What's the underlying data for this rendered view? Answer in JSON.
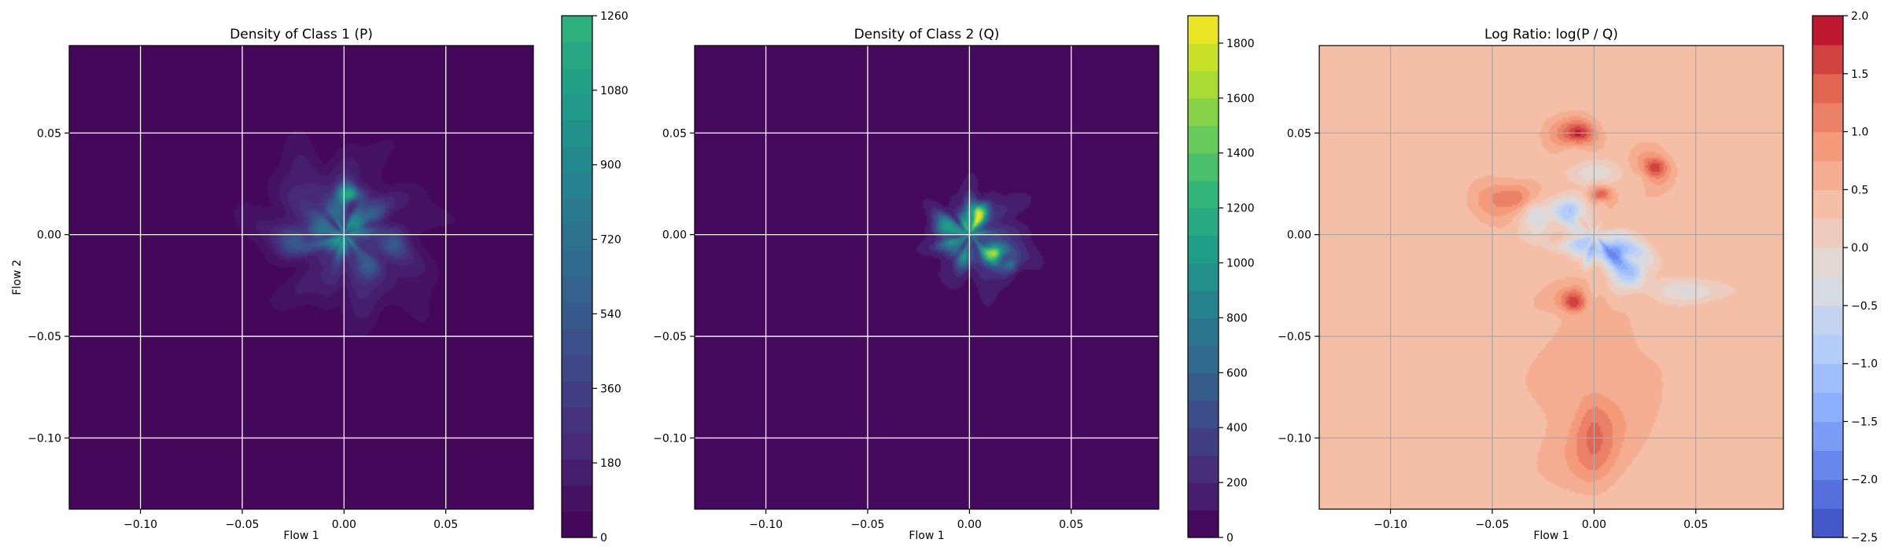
{
  "chart_data": [
    {
      "type": "heatmap",
      "title": "Density of Class 1 (P)",
      "xlabel": "Flow 1",
      "ylabel": "Flow 2",
      "xlim": [
        -0.135,
        0.093
      ],
      "ylim": [
        -0.135,
        0.093
      ],
      "xticks": [
        -0.1,
        -0.05,
        0.0,
        0.05
      ],
      "xtick_labels": [
        "−0.10",
        "−0.05",
        "0.00",
        "0.05"
      ],
      "yticks": [
        -0.1,
        -0.05,
        0.0,
        0.05
      ],
      "ytick_labels": [
        "−0.10",
        "−0.05",
        "0.00",
        "0.05"
      ],
      "grid": true,
      "grid_color": "#ffffff",
      "colormap": "viridis",
      "background_color": "#440154",
      "colorbar": {
        "min": 0,
        "max": 1260,
        "ticks": [
          0,
          180,
          360,
          540,
          720,
          900,
          1080,
          1260
        ],
        "tick_labels": [
          "0",
          "180",
          "360",
          "540",
          "720",
          "900",
          "1080",
          "1260"
        ],
        "levels": 20,
        "cmap_top": 0.65
      },
      "blobs": [
        {
          "x": 0.0,
          "y": 0.0,
          "sx": 0.032,
          "sy": 0.03,
          "value": 110
        },
        {
          "x": -0.012,
          "y": 0.012,
          "sx": 0.018,
          "sy": 0.018,
          "value": 160
        },
        {
          "x": 0.012,
          "y": -0.012,
          "sx": 0.018,
          "sy": 0.018,
          "value": 150
        },
        {
          "x": 0.003,
          "y": 0.02,
          "sx": 0.004,
          "sy": 0.003,
          "value": 980
        },
        {
          "x": 0.006,
          "y": 0.005,
          "sx": 0.004,
          "sy": 0.004,
          "value": 620
        },
        {
          "x": -0.002,
          "y": -0.004,
          "sx": 0.004,
          "sy": 0.004,
          "value": 720
        },
        {
          "x": -0.012,
          "y": 0.002,
          "sx": 0.004,
          "sy": 0.004,
          "value": 420
        },
        {
          "x": -0.025,
          "y": -0.003,
          "sx": 0.005,
          "sy": 0.004,
          "value": 360
        },
        {
          "x": 0.025,
          "y": -0.004,
          "sx": 0.004,
          "sy": 0.004,
          "value": 320
        },
        {
          "x": 0.015,
          "y": 0.01,
          "sx": 0.004,
          "sy": 0.004,
          "value": 300
        },
        {
          "x": -0.005,
          "y": 0.012,
          "sx": 0.004,
          "sy": 0.004,
          "value": 340
        },
        {
          "x": 0.012,
          "y": -0.015,
          "sx": 0.004,
          "sy": 0.004,
          "value": 300
        }
      ]
    },
    {
      "type": "heatmap",
      "title": "Density of Class 2 (Q)",
      "xlabel": "Flow 1",
      "ylabel": "",
      "xlim": [
        -0.135,
        0.093
      ],
      "ylim": [
        -0.135,
        0.093
      ],
      "xticks": [
        -0.1,
        -0.05,
        0.0,
        0.05
      ],
      "xtick_labels": [
        "−0.10",
        "−0.05",
        "0.00",
        "0.05"
      ],
      "yticks": [
        -0.1,
        -0.05,
        0.0,
        0.05
      ],
      "ytick_labels": [
        "−0.10",
        "−0.05",
        "0.00",
        "0.05"
      ],
      "grid": true,
      "grid_color": "#ffffff",
      "colormap": "viridis",
      "background_color": "#440154",
      "colorbar": {
        "min": 0,
        "max": 1900,
        "ticks": [
          0,
          200,
          400,
          600,
          800,
          1000,
          1200,
          1400,
          1600,
          1800
        ],
        "tick_labels": [
          "0",
          "200",
          "400",
          "600",
          "800",
          "1000",
          "1200",
          "1400",
          "1600",
          "1800"
        ],
        "levels": 19,
        "cmap_top": 1.0
      },
      "blobs": [
        {
          "x": 0.002,
          "y": 0.0,
          "sx": 0.022,
          "sy": 0.022,
          "value": 160
        },
        {
          "x": 0.01,
          "y": -0.005,
          "sx": 0.012,
          "sy": 0.012,
          "value": 230
        },
        {
          "x": 0.004,
          "y": 0.011,
          "sx": 0.003,
          "sy": 0.004,
          "value": 1500
        },
        {
          "x": 0.012,
          "y": -0.009,
          "sx": 0.004,
          "sy": 0.003,
          "value": 1350
        },
        {
          "x": -0.012,
          "y": 0.004,
          "sx": 0.004,
          "sy": 0.004,
          "value": 820
        },
        {
          "x": 0.0,
          "y": 0.004,
          "sx": 0.004,
          "sy": 0.004,
          "value": 760
        },
        {
          "x": 0.02,
          "y": -0.015,
          "sx": 0.003,
          "sy": 0.003,
          "value": 600
        },
        {
          "x": -0.008,
          "y": -0.005,
          "sx": 0.004,
          "sy": 0.004,
          "value": 500
        },
        {
          "x": -0.003,
          "y": -0.012,
          "sx": 0.003,
          "sy": 0.003,
          "value": 520
        }
      ]
    },
    {
      "type": "heatmap",
      "title": "Log Ratio: log(P / Q)",
      "xlabel": "Flow 1",
      "ylabel": "",
      "xlim": [
        -0.135,
        0.093
      ],
      "ylim": [
        -0.135,
        0.093
      ],
      "xticks": [
        -0.1,
        -0.05,
        0.0,
        0.05
      ],
      "xtick_labels": [
        "−0.10",
        "−0.05",
        "0.00",
        "0.05"
      ],
      "yticks": [
        -0.1,
        -0.05,
        0.0,
        0.05
      ],
      "ytick_labels": [
        "−0.10",
        "−0.05",
        "0.00",
        "0.05"
      ],
      "grid": true,
      "grid_color": "#a9a9a9",
      "colormap": "coolwarm",
      "colorbar": {
        "min": -2.5,
        "max": 2.0,
        "ticks": [
          -2.5,
          -2.0,
          -1.5,
          -1.0,
          -0.5,
          0.0,
          0.5,
          1.0,
          1.5,
          2.0
        ],
        "tick_labels": [
          "−2.5",
          "−2.0",
          "−1.5",
          "−1.0",
          "−0.5",
          "0.0",
          "0.5",
          "1.0",
          "1.5",
          "2.0"
        ],
        "levels": 18
      },
      "base_value": 0.3,
      "blobs": [
        {
          "x": 0.0,
          "y": -0.07,
          "sx": 0.045,
          "sy": 0.06,
          "value": 0.25
        },
        {
          "x": 0.01,
          "y": -0.008,
          "sx": 0.007,
          "sy": 0.005,
          "value": -2.0
        },
        {
          "x": 0.018,
          "y": -0.018,
          "sx": 0.006,
          "sy": 0.006,
          "value": -1.5
        },
        {
          "x": -0.012,
          "y": 0.012,
          "sx": 0.005,
          "sy": 0.005,
          "value": -1.4
        },
        {
          "x": -0.006,
          "y": -0.005,
          "sx": 0.006,
          "sy": 0.005,
          "value": -1.2
        },
        {
          "x": -0.028,
          "y": 0.01,
          "sx": 0.006,
          "sy": 0.008,
          "value": -0.8
        },
        {
          "x": 0.045,
          "y": -0.028,
          "sx": 0.012,
          "sy": 0.004,
          "value": -0.7
        },
        {
          "x": 0.0,
          "y": 0.03,
          "sx": 0.008,
          "sy": 0.004,
          "value": -0.6
        },
        {
          "x": 0.03,
          "y": 0.033,
          "sx": 0.006,
          "sy": 0.005,
          "value": 1.4
        },
        {
          "x": -0.008,
          "y": 0.05,
          "sx": 0.007,
          "sy": 0.005,
          "value": 1.5
        },
        {
          "x": -0.01,
          "y": -0.033,
          "sx": 0.005,
          "sy": 0.004,
          "value": 1.2
        },
        {
          "x": -0.04,
          "y": 0.018,
          "sx": 0.012,
          "sy": 0.006,
          "value": 0.9
        },
        {
          "x": 0.0,
          "y": -0.1,
          "sx": 0.008,
          "sy": 0.018,
          "value": 0.8
        },
        {
          "x": 0.004,
          "y": 0.02,
          "sx": 0.004,
          "sy": 0.003,
          "value": 1.1
        }
      ]
    }
  ]
}
